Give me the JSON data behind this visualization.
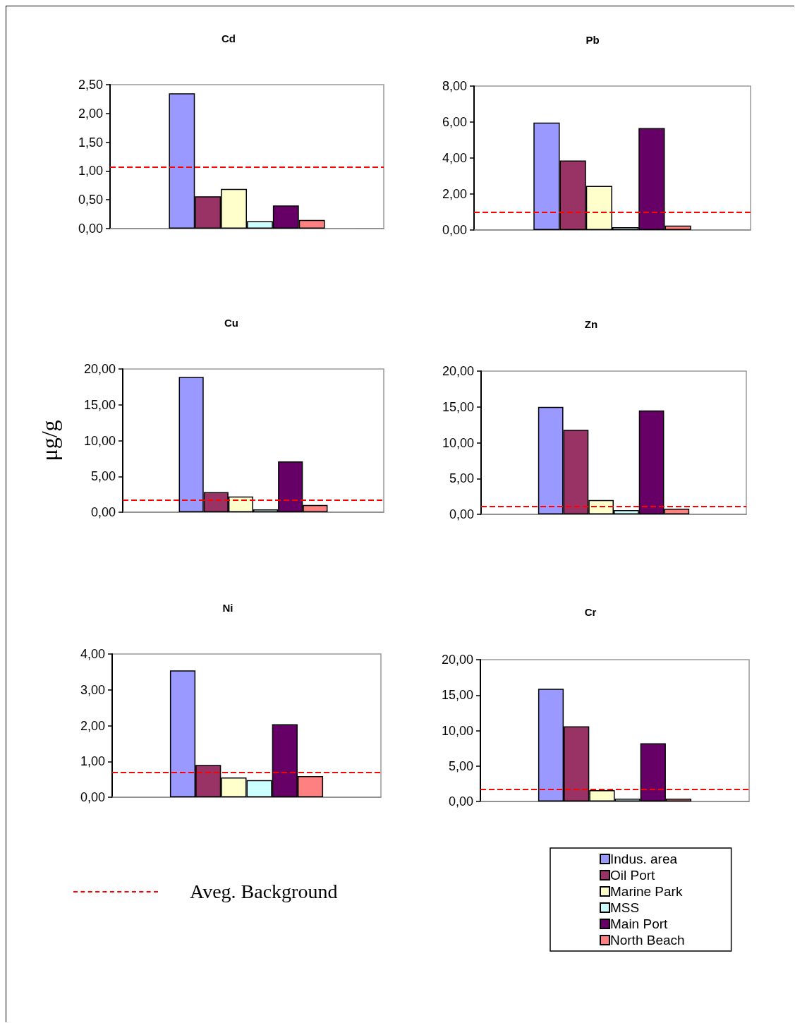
{
  "chart_data": [
    {
      "type": "bar",
      "title": "Cd",
      "categories": [
        null
      ],
      "tick_labels": "y",
      "ylim": [
        0,
        2.5
      ],
      "yticks": [
        {
          "value": 0,
          "label": "0,00"
        },
        {
          "value": 0.5,
          "label": "0,50"
        },
        {
          "value": 1,
          "label": "1,00"
        },
        {
          "value": 1.5,
          "label": "1,50"
        },
        {
          "value": 2,
          "label": "2,00"
        },
        {
          "value": 2.5,
          "label": "2,50"
        }
      ],
      "ref_lines": [
        {
          "axis": "y",
          "value": 1.07,
          "color": "#ff0000",
          "line_style": "dashed"
        }
      ],
      "series": [
        {
          "color": "#9999ff",
          "values": [
            2.35
          ]
        },
        {
          "color": "#993366",
          "values": [
            0.56
          ]
        },
        {
          "color": "#ffffcc",
          "values": [
            0.69
          ]
        },
        {
          "color": "#ccffff",
          "values": [
            0.13
          ]
        },
        {
          "color": "#660066",
          "values": [
            0.4
          ]
        },
        {
          "color": "#ff8080",
          "values": [
            0.15
          ]
        }
      ]
    },
    {
      "type": "bar",
      "title": "Pb",
      "categories": [
        null
      ],
      "tick_labels": "y",
      "ylim": [
        0,
        8
      ],
      "yticks": [
        {
          "value": 0,
          "label": "0,00"
        },
        {
          "value": 2,
          "label": "2,00"
        },
        {
          "value": 4,
          "label": "4,00"
        },
        {
          "value": 6,
          "label": "6,00"
        },
        {
          "value": 8,
          "label": "8,00"
        }
      ],
      "ref_lines": [
        {
          "axis": "y",
          "value": 1,
          "color": "#ff0000",
          "line_style": "dashed"
        }
      ],
      "series": [
        {
          "color": "#9999ff",
          "values": [
            5.97
          ]
        },
        {
          "color": "#993366",
          "values": [
            3.86
          ]
        },
        {
          "color": "#ffffcc",
          "values": [
            2.45
          ]
        },
        {
          "color": "#ccffff",
          "values": [
            0.16
          ]
        },
        {
          "color": "#660066",
          "values": [
            5.67
          ]
        },
        {
          "color": "#ff8080",
          "values": [
            0.25
          ]
        }
      ]
    },
    {
      "type": "bar",
      "title": "Cu",
      "ylabel": "μg/g",
      "categories": [
        null
      ],
      "tick_labels": "y",
      "ylim": [
        0,
        20
      ],
      "yticks": [
        {
          "value": 0,
          "label": "0,00"
        },
        {
          "value": 5,
          "label": "5,00"
        },
        {
          "value": 10,
          "label": "10,00"
        },
        {
          "value": 15,
          "label": "15,00"
        },
        {
          "value": 20,
          "label": "20,00"
        }
      ],
      "ref_lines": [
        {
          "axis": "y",
          "value": 1.7,
          "color": "#ff0000",
          "line_style": "dashed"
        }
      ],
      "series": [
        {
          "color": "#9999ff",
          "values": [
            18.9
          ]
        },
        {
          "color": "#993366",
          "values": [
            2.8
          ]
        },
        {
          "color": "#ffffcc",
          "values": [
            2.2
          ]
        },
        {
          "color": "#ccffff",
          "values": [
            0.4
          ]
        },
        {
          "color": "#660066",
          "values": [
            7.1
          ]
        },
        {
          "color": "#ff8080",
          "values": [
            1.0
          ]
        }
      ]
    },
    {
      "type": "bar",
      "title": "Zn",
      "categories": [
        null
      ],
      "tick_labels": "y",
      "ylim": [
        0,
        20
      ],
      "yticks": [
        {
          "value": 0,
          "label": "0,00"
        },
        {
          "value": 5,
          "label": "5,00"
        },
        {
          "value": 10,
          "label": "10,00"
        },
        {
          "value": 15,
          "label": "15,00"
        },
        {
          "value": 20,
          "label": "20,00"
        }
      ],
      "ref_lines": [
        {
          "axis": "y",
          "value": 1.1,
          "color": "#ff0000",
          "line_style": "dashed"
        }
      ],
      "series": [
        {
          "color": "#9999ff",
          "values": [
            15
          ]
        },
        {
          "color": "#993366",
          "values": [
            11.8
          ]
        },
        {
          "color": "#ffffcc",
          "values": [
            2.0
          ]
        },
        {
          "color": "#ccffff",
          "values": [
            0.6
          ]
        },
        {
          "color": "#660066",
          "values": [
            14.5
          ]
        },
        {
          "color": "#ff8080",
          "values": [
            0.8
          ]
        }
      ]
    },
    {
      "type": "bar",
      "title": "Ni",
      "categories": [
        null
      ],
      "tick_labels": "y",
      "ylim": [
        0,
        4
      ],
      "yticks": [
        {
          "value": 0,
          "label": "0,00"
        },
        {
          "value": 1,
          "label": "1,00"
        },
        {
          "value": 2,
          "label": "2,00"
        },
        {
          "value": 3,
          "label": "3,00"
        },
        {
          "value": 4,
          "label": "4,00"
        }
      ],
      "ref_lines": [
        {
          "axis": "y",
          "value": 0.7,
          "color": "#ff0000",
          "line_style": "dashed",
          "label": "Aveg. Background"
        }
      ],
      "series": [
        {
          "color": "#9999ff",
          "values": [
            3.54
          ]
        },
        {
          "color": "#993366",
          "values": [
            0.9
          ]
        },
        {
          "color": "#ffffcc",
          "values": [
            0.55
          ]
        },
        {
          "color": "#ccffff",
          "values": [
            0.48
          ]
        },
        {
          "color": "#660066",
          "values": [
            2.04
          ]
        },
        {
          "color": "#ff8080",
          "values": [
            0.59
          ]
        }
      ]
    },
    {
      "type": "bar",
      "title": "Cr",
      "categories": [
        null
      ],
      "tick_labels": "y",
      "legend": "bottom",
      "ylim": [
        0,
        20
      ],
      "yticks": [
        {
          "value": 0,
          "label": "0,00"
        },
        {
          "value": 5,
          "label": "5,00"
        },
        {
          "value": 10,
          "label": "10,00"
        },
        {
          "value": 15,
          "label": "15,00"
        },
        {
          "value": 20,
          "label": "20,00"
        }
      ],
      "ref_lines": [
        {
          "axis": "y",
          "value": 1.7,
          "color": "#ff0000",
          "line_style": "dashed"
        }
      ],
      "series": [
        {
          "name": "Indus. area",
          "color": "#9999ff",
          "values": [
            15.9
          ]
        },
        {
          "name": "Oil Port",
          "color": "#993366",
          "values": [
            10.6
          ]
        },
        {
          "name": "Marine Park",
          "color": "#ffffcc",
          "values": [
            1.6
          ]
        },
        {
          "name": "MSS",
          "color": "#ccffff",
          "values": [
            0.4
          ]
        },
        {
          "name": "Main Port",
          "color": "#660066",
          "values": [
            8.2
          ]
        },
        {
          "name": "North Beach",
          "color": "#ff8080",
          "values": [
            0.4
          ]
        }
      ]
    }
  ]
}
